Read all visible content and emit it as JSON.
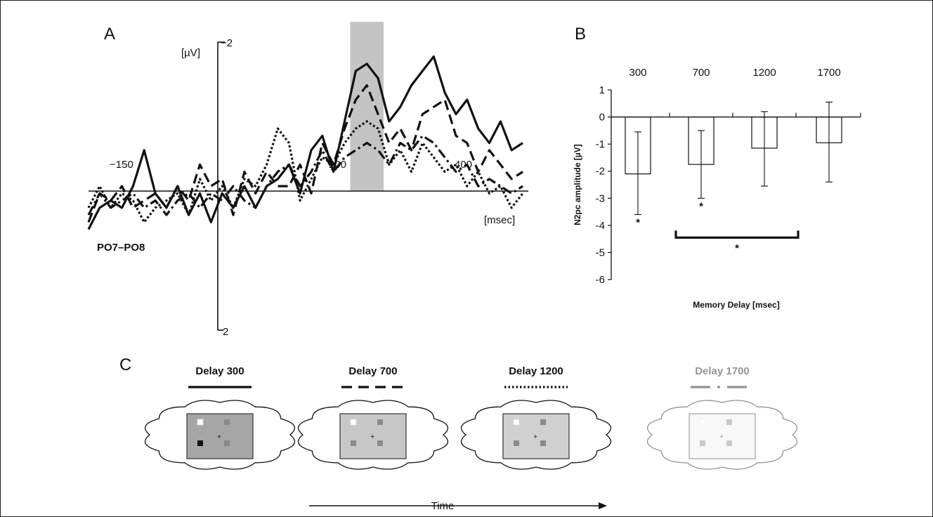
{
  "panels": {
    "a": {
      "letter": "A",
      "unit_label": "[µV]",
      "y_top_label": "−2",
      "y_bottom_label": "2",
      "x_unit_label": "[msec]",
      "channel_label": "PO7–PO8",
      "x_tick_labels": [
        "−150",
        "200",
        "400"
      ]
    },
    "b": {
      "letter": "B"
    },
    "c": {
      "letter": "C",
      "time_label": "Time",
      "delays": [
        {
          "label": "Delay 300",
          "line": "solid",
          "screen_gray": "#a6a6a6",
          "opacity": 1.0
        },
        {
          "label": "Delay 700",
          "line": "dashed",
          "screen_gray": "#c7c7c7",
          "opacity": 1.0
        },
        {
          "label": "Delay 1200",
          "line": "dotted",
          "screen_gray": "#d0d0d0",
          "opacity": 1.0
        },
        {
          "label": "Delay 1700",
          "line": "dash-dot",
          "screen_gray": "#f0f0f0",
          "opacity": 0.45
        }
      ]
    }
  },
  "chart_data": [
    {
      "type": "line",
      "xlabel": "[msec]",
      "ylabel": "[µV]",
      "ylim": [
        2,
        -2
      ],
      "x_range": [
        -250,
        540
      ],
      "inverted_y": true,
      "highlight_window": [
        220,
        280
      ],
      "series": [
        {
          "style": "solid",
          "x": [
            -250,
            -230,
            -210,
            -190,
            -170,
            -150,
            -130,
            -110,
            -90,
            -70,
            -50,
            -30,
            -10,
            10,
            30,
            50,
            70,
            90,
            110,
            130,
            150,
            170,
            190,
            210,
            230,
            250,
            270,
            290,
            310,
            330,
            350,
            370,
            390,
            410,
            430,
            450,
            470,
            490,
            510,
            530
          ],
          "y": [
            0.6,
            0.3,
            0.2,
            0.3,
            0.0,
            -0.5,
            0.1,
            0.3,
            0.0,
            0.4,
            0.1,
            0.5,
            0.1,
            0.3,
            0.0,
            0.3,
            0.0,
            -0.1,
            -0.3,
            0.1,
            -0.5,
            -0.7,
            -0.2,
            -0.9,
            -1.6,
            -1.7,
            -1.5,
            -0.9,
            -1.1,
            -1.4,
            -1.6,
            -1.8,
            -1.3,
            -1.0,
            -1.2,
            -0.8,
            -0.6,
            -0.9,
            -0.5,
            -0.6
          ]
        },
        {
          "style": "dashed",
          "x": [
            -250,
            -230,
            -210,
            -190,
            -170,
            -150,
            -130,
            -110,
            -90,
            -70,
            -50,
            -30,
            -10,
            10,
            30,
            50,
            70,
            90,
            110,
            130,
            150,
            170,
            190,
            210,
            230,
            250,
            270,
            290,
            310,
            330,
            350,
            370,
            390,
            410,
            430,
            450,
            470,
            490,
            510,
            530
          ],
          "y": [
            0.5,
            0.1,
            0.2,
            0.0,
            0.3,
            0.2,
            0.1,
            0.3,
            0.0,
            0.2,
            -0.3,
            0.0,
            -0.1,
            0.4,
            -0.2,
            0.1,
            -0.2,
            0.0,
            0.0,
            -0.3,
            0.1,
            -0.6,
            -0.3,
            -0.8,
            -1.2,
            -1.4,
            -1.0,
            -0.6,
            -0.8,
            -0.5,
            -1.0,
            -1.1,
            -1.2,
            -0.7,
            -0.6,
            -0.2,
            -0.5,
            -0.3,
            -0.1,
            -0.2
          ]
        },
        {
          "style": "dotted",
          "x": [
            -250,
            -230,
            -210,
            -190,
            -170,
            -150,
            -130,
            -110,
            -90,
            -70,
            -50,
            -30,
            -10,
            10,
            30,
            50,
            70,
            90,
            110,
            130,
            150,
            170,
            190,
            210,
            230,
            250,
            270,
            290,
            310,
            330,
            350,
            370,
            390,
            410,
            430,
            450,
            470,
            490,
            510,
            530
          ],
          "y": [
            0.3,
            0.0,
            0.3,
            0.1,
            0.2,
            0.5,
            0.3,
            0.2,
            0.1,
            0.4,
            -0.1,
            0.2,
            0.0,
            0.3,
            -0.1,
            0.0,
            -0.3,
            -0.8,
            -0.6,
            0.2,
            -0.1,
            -0.4,
            -0.3,
            -0.6,
            -0.8,
            -0.9,
            -0.8,
            -0.3,
            -0.5,
            -0.2,
            -0.6,
            -0.4,
            -0.2,
            -0.3,
            0.0,
            -0.2,
            0.1,
            0.0,
            0.3,
            0.1
          ]
        },
        {
          "style": "dash-dot",
          "x": [
            -250,
            -230,
            -210,
            -190,
            -170,
            -150,
            -130,
            -110,
            -90,
            -70,
            -50,
            -30,
            -10,
            10,
            30,
            50,
            70,
            90,
            110,
            130,
            150,
            170,
            190,
            210,
            230,
            250,
            270,
            290,
            310,
            330,
            350,
            370,
            390,
            410,
            430,
            450,
            470,
            490,
            510,
            530
          ],
          "y": [
            0.4,
            0.1,
            0.3,
            0.2,
            0.1,
            0.3,
            0.2,
            0.4,
            0.2,
            0.1,
            0.3,
            0.1,
            0.2,
            0.0,
            0.2,
            0.3,
            0.0,
            -0.2,
            -0.3,
            0.0,
            -0.2,
            -0.5,
            -0.2,
            -0.4,
            -0.5,
            -0.6,
            -0.5,
            -0.3,
            -0.6,
            -0.5,
            -0.7,
            -0.6,
            -0.4,
            -0.2,
            -0.3,
            0.0,
            -0.1,
            0.0,
            0.1,
            0.0
          ]
        }
      ]
    },
    {
      "type": "bar",
      "title_categories": [
        "300",
        "700",
        "1200",
        "1700"
      ],
      "categories": [
        "300",
        "700",
        "1200",
        "1700"
      ],
      "values": [
        -2.1,
        -1.75,
        -1.15,
        -0.95
      ],
      "error_low": [
        -3.6,
        -3.0,
        -2.55,
        -2.4
      ],
      "error_high": [
        -0.55,
        -0.5,
        0.2,
        0.55
      ],
      "significance_labels": [
        "*",
        "*",
        "",
        ""
      ],
      "bracket": {
        "from": "700",
        "to": "1700",
        "label": "*"
      },
      "ylabel": "N2pc amplitude [µV]",
      "xlabel": "Memory Delay [msec]",
      "ylim": [
        -6,
        1
      ],
      "yticks": [
        "1",
        "0",
        "-1",
        "-2",
        "-3",
        "-4",
        "-5",
        "-6"
      ]
    }
  ]
}
